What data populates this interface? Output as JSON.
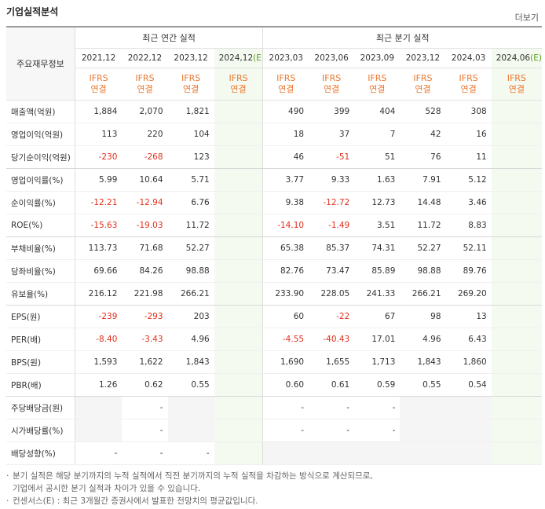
{
  "title": "기업실적분석",
  "more": "더보기",
  "header": {
    "row_label": "주요재무정보",
    "groups": [
      {
        "label": "최근 연간 실적",
        "span": 4
      },
      {
        "label": "최근 분기 실적",
        "span": 6
      }
    ],
    "columns": [
      {
        "period": "2021,12",
        "ifrs": "IFRS",
        "basis": "연결"
      },
      {
        "period": "2022,12",
        "ifrs": "IFRS",
        "basis": "연결"
      },
      {
        "period": "2023,12",
        "ifrs": "IFRS",
        "basis": "연결"
      },
      {
        "period": "2024,12",
        "estimate": "(E)",
        "ifrs": "IFRS",
        "basis": "연결"
      },
      {
        "period": "2023,03",
        "ifrs": "IFRS",
        "basis": "연결"
      },
      {
        "period": "2023,06",
        "ifrs": "IFRS",
        "basis": "연결"
      },
      {
        "period": "2023,09",
        "ifrs": "IFRS",
        "basis": "연결"
      },
      {
        "period": "2023,12",
        "ifrs": "IFRS",
        "basis": "연결"
      },
      {
        "period": "2024,03",
        "ifrs": "IFRS",
        "basis": "연결"
      },
      {
        "period": "2024,06",
        "estimate": "(E)",
        "ifrs": "IFRS",
        "basis": "연결"
      }
    ]
  },
  "table": {
    "rows": [
      {
        "label": "매출액(억원)",
        "values": [
          "1,884",
          "2,070",
          "1,821",
          null,
          "490",
          "399",
          "404",
          "528",
          "308",
          null
        ]
      },
      {
        "label": "영업이익(억원)",
        "values": [
          "113",
          "220",
          "104",
          null,
          "18",
          "37",
          "7",
          "42",
          "16",
          null
        ]
      },
      {
        "label": "당기순이익(억원)",
        "values": [
          "-230",
          "-268",
          "123",
          null,
          "46",
          "-51",
          "51",
          "76",
          "11",
          null
        ]
      },
      {
        "label": "영업이익률(%)",
        "values": [
          "5.99",
          "10.64",
          "5.71",
          null,
          "3.77",
          "9.33",
          "1.63",
          "7.91",
          "5.12",
          null
        ]
      },
      {
        "label": "순이익률(%)",
        "values": [
          "-12.21",
          "-12.94",
          "6.76",
          null,
          "9.38",
          "-12.72",
          "12.73",
          "14.48",
          "3.46",
          null
        ]
      },
      {
        "label": "ROE(%)",
        "values": [
          "-15.63",
          "-19.03",
          "11.72",
          null,
          "-14.10",
          "-1.49",
          "3.51",
          "11.72",
          "8.83",
          null
        ]
      },
      {
        "label": "부채비율(%)",
        "values": [
          "113.73",
          "71.68",
          "52.27",
          null,
          "65.38",
          "85.37",
          "74.31",
          "52.27",
          "52.11",
          null
        ]
      },
      {
        "label": "당좌비율(%)",
        "values": [
          "69.66",
          "84.26",
          "98.88",
          null,
          "82.76",
          "73.47",
          "85.89",
          "98.88",
          "89.76",
          null
        ]
      },
      {
        "label": "유보율(%)",
        "values": [
          "216.12",
          "221.98",
          "266.21",
          null,
          "233.90",
          "228.05",
          "241.33",
          "266.21",
          "269.20",
          null
        ]
      },
      {
        "label": "EPS(원)",
        "values": [
          "-239",
          "-293",
          "203",
          null,
          "60",
          "-22",
          "67",
          "98",
          "13",
          null
        ]
      },
      {
        "label": "PER(배)",
        "values": [
          "-8.40",
          "-3.43",
          "4.96",
          null,
          "-4.55",
          "-40.43",
          "17.01",
          "4.96",
          "6.43",
          null
        ]
      },
      {
        "label": "BPS(원)",
        "values": [
          "1,593",
          "1,622",
          "1,843",
          null,
          "1,690",
          "1,655",
          "1,713",
          "1,843",
          "1,860",
          null
        ]
      },
      {
        "label": "PBR(배)",
        "values": [
          "1.26",
          "0.62",
          "0.55",
          null,
          "0.60",
          "0.61",
          "0.59",
          "0.55",
          "0.54",
          null
        ]
      },
      {
        "label": "주당배당금(원)",
        "values": [
          null,
          "-",
          null,
          null,
          "-",
          "-",
          "-",
          null,
          null,
          null
        ]
      },
      {
        "label": "시가배당률(%)",
        "values": [
          null,
          "-",
          null,
          null,
          "-",
          "-",
          "-",
          null,
          null,
          null
        ]
      },
      {
        "label": "배당성향(%)",
        "values": [
          "-",
          "-",
          "-",
          null,
          null,
          null,
          null,
          null,
          null,
          null
        ]
      }
    ]
  },
  "notes": [
    "분기 실적은 해당 분기까지의 누적 실적에서 직전 분기까지의 누적 실적을 차감하는 방식으로 계산되므로,",
    "기업에서 공시한 분기 실적과 차이가 있을 수 있습니다.",
    "컨센서스(E) : 최근 3개월간 증권사에서 발표한 전망치의 평균값입니다."
  ]
}
